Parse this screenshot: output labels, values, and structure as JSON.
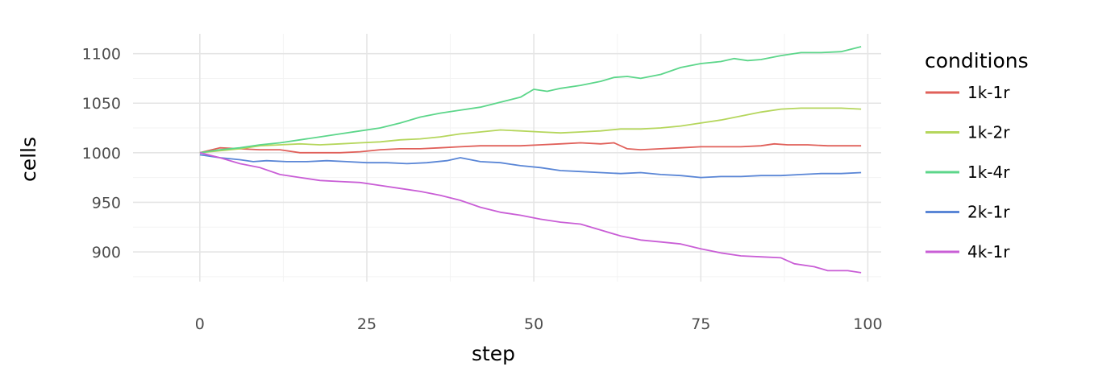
{
  "chart_data": {
    "type": "line",
    "title": "",
    "xlabel": "step",
    "ylabel": "cells",
    "xlim": [
      -10,
      102
    ],
    "ylim": [
      870,
      1120
    ],
    "x_ticks": [
      0,
      25,
      50,
      75,
      100
    ],
    "y_ticks": [
      900,
      950,
      1000,
      1050,
      1100
    ],
    "x_tick_labels": [
      "0",
      "25",
      "50",
      "75",
      "100"
    ],
    "y_tick_labels": [
      "900",
      "950",
      "1000",
      "1050",
      "1100"
    ],
    "grid": true,
    "legend_title": "conditions",
    "legend_position": "right",
    "series": [
      {
        "name": "1k-1r",
        "color": "#e0605a",
        "points": [
          [
            0,
            1000
          ],
          [
            3,
            1005
          ],
          [
            6,
            1004
          ],
          [
            9,
            1003
          ],
          [
            12,
            1003
          ],
          [
            15,
            1000
          ],
          [
            18,
            1000
          ],
          [
            21,
            1000
          ],
          [
            24,
            1001
          ],
          [
            27,
            1003
          ],
          [
            30,
            1004
          ],
          [
            33,
            1004
          ],
          [
            36,
            1005
          ],
          [
            39,
            1006
          ],
          [
            42,
            1007
          ],
          [
            45,
            1007
          ],
          [
            48,
            1007
          ],
          [
            51,
            1008
          ],
          [
            54,
            1009
          ],
          [
            57,
            1010
          ],
          [
            60,
            1009
          ],
          [
            62,
            1010
          ],
          [
            64,
            1004
          ],
          [
            66,
            1003
          ],
          [
            69,
            1004
          ],
          [
            72,
            1005
          ],
          [
            75,
            1006
          ],
          [
            78,
            1006
          ],
          [
            81,
            1006
          ],
          [
            84,
            1007
          ],
          [
            86,
            1009
          ],
          [
            88,
            1008
          ],
          [
            91,
            1008
          ],
          [
            94,
            1007
          ],
          [
            97,
            1007
          ],
          [
            99,
            1007
          ]
        ]
      },
      {
        "name": "1k-2r",
        "color": "#b5d65c",
        "points": [
          [
            0,
            1000
          ],
          [
            3,
            1002
          ],
          [
            6,
            1004
          ],
          [
            9,
            1007
          ],
          [
            12,
            1008
          ],
          [
            15,
            1009
          ],
          [
            18,
            1008
          ],
          [
            21,
            1009
          ],
          [
            24,
            1010
          ],
          [
            27,
            1011
          ],
          [
            30,
            1013
          ],
          [
            33,
            1014
          ],
          [
            36,
            1016
          ],
          [
            39,
            1019
          ],
          [
            42,
            1021
          ],
          [
            45,
            1023
          ],
          [
            48,
            1022
          ],
          [
            51,
            1021
          ],
          [
            54,
            1020
          ],
          [
            57,
            1021
          ],
          [
            60,
            1022
          ],
          [
            63,
            1024
          ],
          [
            66,
            1024
          ],
          [
            69,
            1025
          ],
          [
            72,
            1027
          ],
          [
            75,
            1030
          ],
          [
            78,
            1033
          ],
          [
            81,
            1037
          ],
          [
            84,
            1041
          ],
          [
            87,
            1044
          ],
          [
            90,
            1045
          ],
          [
            93,
            1045
          ],
          [
            96,
            1045
          ],
          [
            99,
            1044
          ]
        ]
      },
      {
        "name": "1k-4r",
        "color": "#5cd68a",
        "points": [
          [
            0,
            1000
          ],
          [
            3,
            1003
          ],
          [
            6,
            1005
          ],
          [
            9,
            1008
          ],
          [
            12,
            1010
          ],
          [
            15,
            1013
          ],
          [
            18,
            1016
          ],
          [
            21,
            1019
          ],
          [
            24,
            1022
          ],
          [
            27,
            1025
          ],
          [
            30,
            1030
          ],
          [
            33,
            1036
          ],
          [
            36,
            1040
          ],
          [
            39,
            1043
          ],
          [
            42,
            1046
          ],
          [
            45,
            1051
          ],
          [
            48,
            1056
          ],
          [
            50,
            1064
          ],
          [
            52,
            1062
          ],
          [
            54,
            1065
          ],
          [
            57,
            1068
          ],
          [
            60,
            1072
          ],
          [
            62,
            1076
          ],
          [
            64,
            1077
          ],
          [
            66,
            1075
          ],
          [
            69,
            1079
          ],
          [
            72,
            1086
          ],
          [
            75,
            1090
          ],
          [
            78,
            1092
          ],
          [
            80,
            1095
          ],
          [
            82,
            1093
          ],
          [
            84,
            1094
          ],
          [
            87,
            1098
          ],
          [
            90,
            1101
          ],
          [
            93,
            1101
          ],
          [
            96,
            1102
          ],
          [
            99,
            1107
          ]
        ]
      },
      {
        "name": "2k-1r",
        "color": "#5a86d6",
        "points": [
          [
            0,
            998
          ],
          [
            3,
            995
          ],
          [
            6,
            993
          ],
          [
            8,
            991
          ],
          [
            10,
            992
          ],
          [
            13,
            991
          ],
          [
            16,
            991
          ],
          [
            19,
            992
          ],
          [
            22,
            991
          ],
          [
            25,
            990
          ],
          [
            28,
            990
          ],
          [
            31,
            989
          ],
          [
            34,
            990
          ],
          [
            37,
            992
          ],
          [
            39,
            995
          ],
          [
            42,
            991
          ],
          [
            45,
            990
          ],
          [
            48,
            987
          ],
          [
            51,
            985
          ],
          [
            54,
            982
          ],
          [
            57,
            981
          ],
          [
            60,
            980
          ],
          [
            63,
            979
          ],
          [
            66,
            980
          ],
          [
            69,
            978
          ],
          [
            72,
            977
          ],
          [
            75,
            975
          ],
          [
            78,
            976
          ],
          [
            81,
            976
          ],
          [
            84,
            977
          ],
          [
            87,
            977
          ],
          [
            90,
            978
          ],
          [
            93,
            979
          ],
          [
            96,
            979
          ],
          [
            99,
            980
          ]
        ]
      },
      {
        "name": "4k-1r",
        "color": "#c95ed6",
        "points": [
          [
            0,
            1000
          ],
          [
            3,
            995
          ],
          [
            6,
            989
          ],
          [
            9,
            985
          ],
          [
            12,
            978
          ],
          [
            15,
            975
          ],
          [
            18,
            972
          ],
          [
            21,
            971
          ],
          [
            24,
            970
          ],
          [
            27,
            967
          ],
          [
            30,
            964
          ],
          [
            33,
            961
          ],
          [
            36,
            957
          ],
          [
            39,
            952
          ],
          [
            42,
            945
          ],
          [
            45,
            940
          ],
          [
            48,
            937
          ],
          [
            51,
            933
          ],
          [
            54,
            930
          ],
          [
            57,
            928
          ],
          [
            60,
            922
          ],
          [
            63,
            916
          ],
          [
            66,
            912
          ],
          [
            69,
            910
          ],
          [
            72,
            908
          ],
          [
            75,
            903
          ],
          [
            78,
            899
          ],
          [
            81,
            896
          ],
          [
            84,
            895
          ],
          [
            87,
            894
          ],
          [
            89,
            888
          ],
          [
            92,
            885
          ],
          [
            94,
            881
          ],
          [
            97,
            881
          ],
          [
            99,
            879
          ]
        ]
      }
    ]
  }
}
